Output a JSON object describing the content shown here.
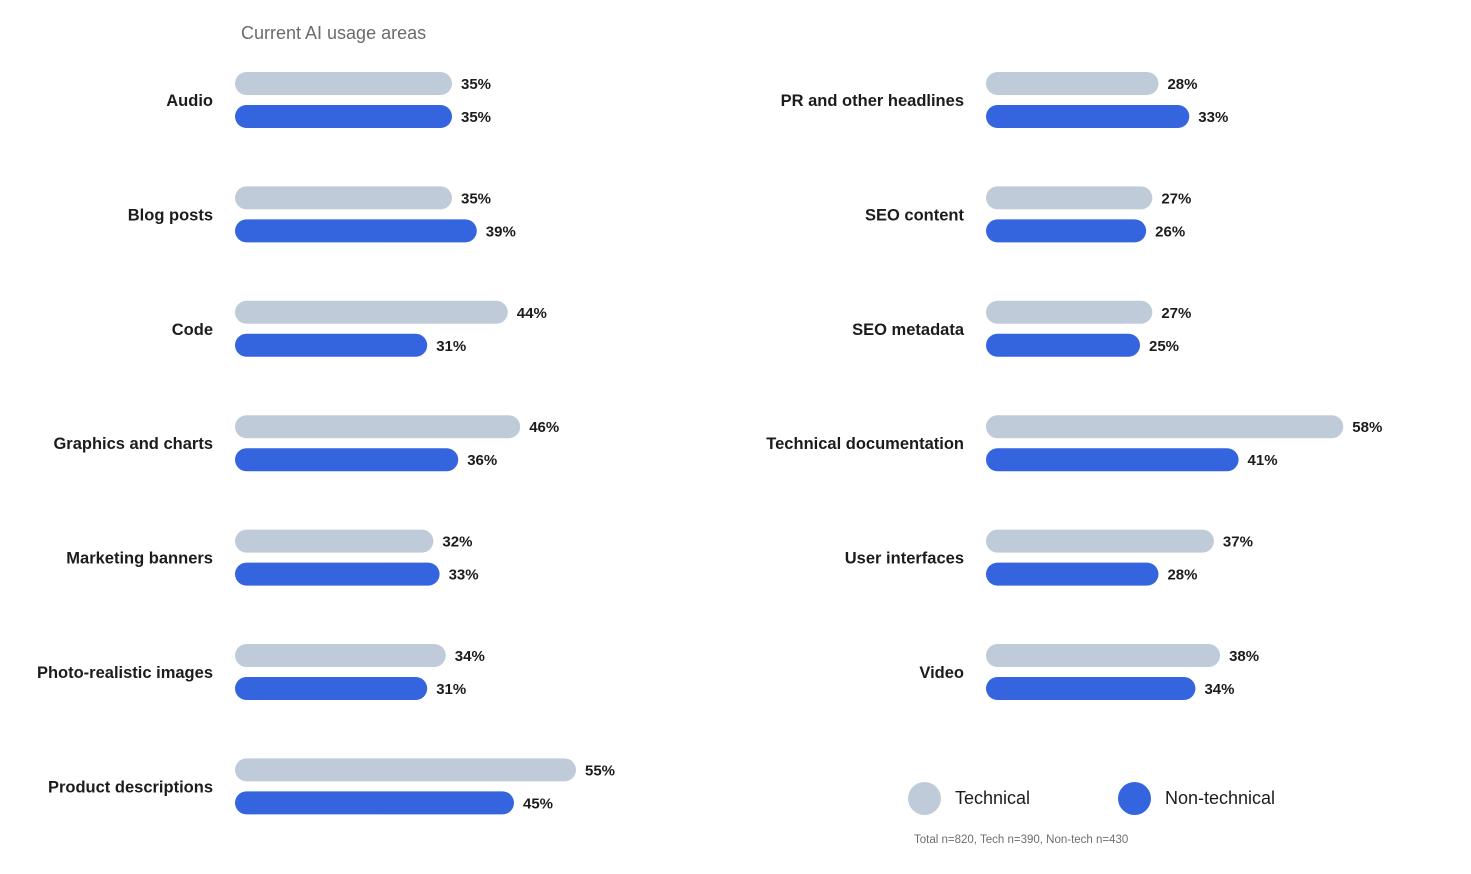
{
  "chart_data": {
    "type": "bar",
    "orientation": "horizontal",
    "title": "Current AI usage areas",
    "value_suffix": "%",
    "series": [
      {
        "name": "Technical",
        "color": "#c0cbd9"
      },
      {
        "name": "Non-technical",
        "color": "#3464de"
      }
    ],
    "panels": [
      {
        "categories": [
          "Audio",
          "Blog posts",
          "Code",
          "Graphics and charts",
          "Marketing banners",
          "Photo-realistic images",
          "Product descriptions"
        ],
        "technical": [
          35,
          35,
          44,
          46,
          32,
          34,
          55
        ],
        "non_technical": [
          35,
          39,
          31,
          36,
          33,
          31,
          45
        ]
      },
      {
        "categories": [
          "PR and other headlines",
          "SEO content",
          "SEO metadata",
          "Technical documentation",
          "User interfaces",
          "Video"
        ],
        "technical": [
          28,
          27,
          27,
          58,
          37,
          38
        ],
        "non_technical": [
          33,
          26,
          25,
          41,
          28,
          34
        ]
      }
    ],
    "legend": [
      "Technical",
      "Non-technical"
    ],
    "legend_position": "bottom-right",
    "footnote": "Total n=820, Tech n=390, Non-tech n=430"
  }
}
